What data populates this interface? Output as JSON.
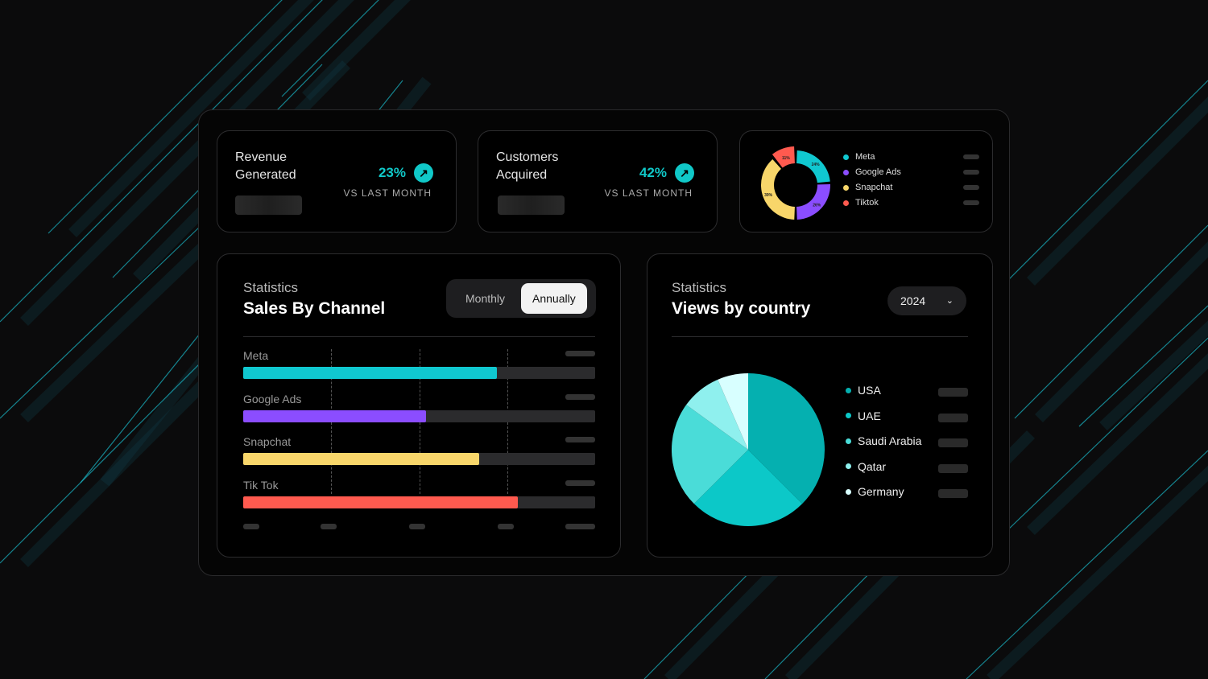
{
  "kpis": [
    {
      "title": "Revenue Generated",
      "percent": "23%",
      "compare": "VS LAST MONTH",
      "icon": "arrow-up-right-icon"
    },
    {
      "title": "Customers Acquired",
      "percent": "42%",
      "compare": "VS LAST MONTH",
      "icon": "arrow-up-right-icon"
    }
  ],
  "accent": "#10c8c8",
  "chart_data": [
    {
      "type": "pie",
      "variant": "donut",
      "labels": [
        "Meta",
        "Google Ads",
        "Snapchat",
        "Tiktok"
      ],
      "values": [
        24,
        26,
        39,
        11
      ],
      "value_labels": [
        "24%",
        "26%",
        "39%",
        "11%"
      ],
      "colors": [
        "#10c8d0",
        "#8b4dff",
        "#f8d66a",
        "#ff5a4f"
      ],
      "legend": "right"
    },
    {
      "type": "bar",
      "orientation": "horizontal",
      "subtitle": "Statistics",
      "title": "Sales By Channel",
      "categories": [
        "Meta",
        "Google Ads",
        "Snapchat",
        "Tik Tok"
      ],
      "values": [
        72,
        52,
        67,
        78
      ],
      "xlim": [
        0,
        100
      ],
      "colors": [
        "#10c8d0",
        "#8b4dff",
        "#f8d66a",
        "#ff5a4f"
      ],
      "grid": true
    },
    {
      "type": "pie",
      "subtitle": "Statistics",
      "title": "Views by country",
      "labels": [
        "USA",
        "UAE",
        "Saudi Arabia",
        "Qatar",
        "Germany"
      ],
      "values": [
        37.5,
        25,
        22.5,
        8.5,
        6.5
      ],
      "colors": [
        "#05b0b0",
        "#0cc8c8",
        "#4adcd8",
        "#8ff0ee",
        "#d8ffff"
      ],
      "legend": "right"
    }
  ],
  "toggle": {
    "options": [
      "Monthly",
      "Annually"
    ],
    "selected": "Annually"
  },
  "year_select": {
    "value": "2024",
    "icon": "chevron-down-icon"
  }
}
